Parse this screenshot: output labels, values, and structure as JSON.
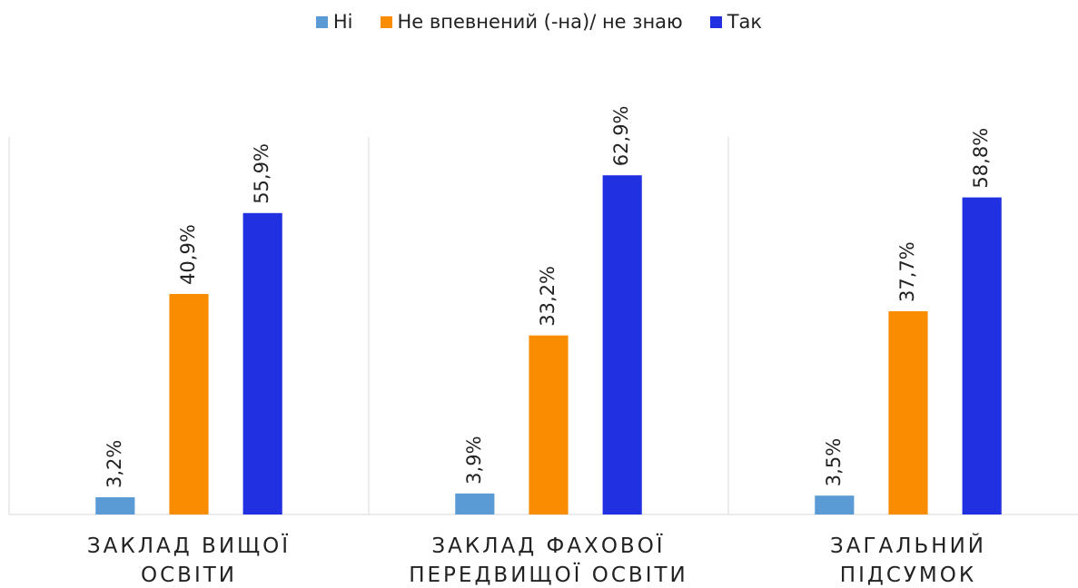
{
  "chart_data": {
    "type": "bar",
    "categories": [
      "ЗАКЛАД ВИЩОЇ ОСВІТИ",
      "ЗАКЛАД ФАХОВОЇ ПЕРЕДВИЩОЇ ОСВІТИ",
      "ЗАГАЛЬНИЙ ПІДСУМОК"
    ],
    "series": [
      {
        "name": "Ні",
        "color": "#5b9bd5",
        "values": [
          3.2,
          3.9,
          3.5
        ],
        "value_labels": [
          "3,2%",
          "3,9%",
          "3,5%"
        ]
      },
      {
        "name": "Не впевнений (-на)/ не знаю",
        "color": "#f98c00",
        "values": [
          40.9,
          33.2,
          37.7
        ],
        "value_labels": [
          "40,9%",
          "33,2%",
          "37,7%"
        ]
      },
      {
        "name": "Так",
        "color": "#2130e0",
        "values": [
          55.9,
          62.9,
          58.8
        ],
        "value_labels": [
          "55,9%",
          "62,9%",
          "58,8%"
        ]
      }
    ],
    "ylim": [
      0,
      70
    ],
    "legend": "top"
  }
}
